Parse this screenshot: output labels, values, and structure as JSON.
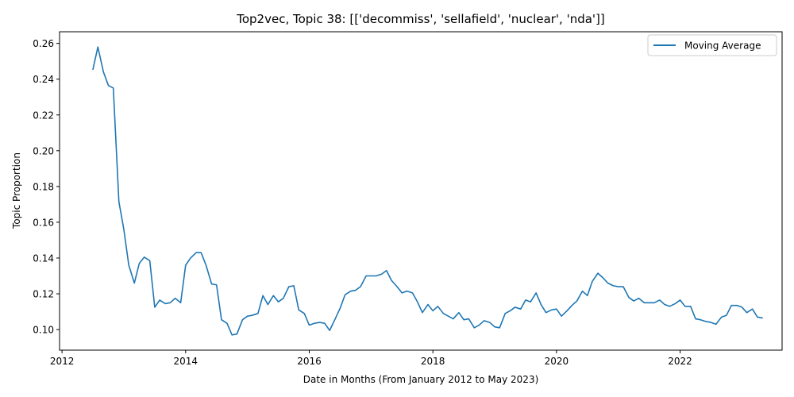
{
  "chart_data": {
    "type": "line",
    "title": "Top2vec, Topic 38: [['decommiss', 'sellafield', 'nuclear', 'nda']]",
    "xlabel": "Date in Months (From January 2012 to May 2023)",
    "ylabel": "Topic Proportion",
    "xlim": [
      2011.96,
      2023.65
    ],
    "ylim": [
      0.0885,
      0.2665
    ],
    "x_ticks": [
      2012,
      2014,
      2016,
      2018,
      2020,
      2022
    ],
    "x_tick_labels": [
      "2012",
      "2014",
      "2016",
      "2018",
      "2020",
      "2022"
    ],
    "y_ticks": [
      0.1,
      0.12,
      0.14,
      0.16,
      0.18,
      0.2,
      0.22,
      0.24,
      0.26
    ],
    "y_tick_labels": [
      "0.10",
      "0.12",
      "0.14",
      "0.16",
      "0.18",
      "0.20",
      "0.22",
      "0.24",
      "0.26"
    ],
    "grid": false,
    "legend": {
      "position": "top-right",
      "entries": [
        "Moving Average"
      ]
    },
    "series": [
      {
        "name": "Moving Average",
        "color": "#1f77b4",
        "points": [
          [
            2012.5,
            0.2455
          ],
          [
            2012.58,
            0.258
          ],
          [
            2012.67,
            0.244
          ],
          [
            2012.75,
            0.2365
          ],
          [
            2012.83,
            0.235
          ],
          [
            2012.92,
            0.1715
          ],
          [
            2013.0,
            0.156
          ],
          [
            2013.08,
            0.136
          ],
          [
            2013.17,
            0.126
          ],
          [
            2013.25,
            0.137
          ],
          [
            2013.33,
            0.1405
          ],
          [
            2013.42,
            0.1385
          ],
          [
            2013.5,
            0.1125
          ],
          [
            2013.58,
            0.1165
          ],
          [
            2013.67,
            0.1145
          ],
          [
            2013.75,
            0.115
          ],
          [
            2013.83,
            0.1175
          ],
          [
            2013.92,
            0.115
          ],
          [
            2014.0,
            0.136
          ],
          [
            2014.08,
            0.14
          ],
          [
            2014.17,
            0.143
          ],
          [
            2014.25,
            0.143
          ],
          [
            2014.33,
            0.136
          ],
          [
            2014.42,
            0.1255
          ],
          [
            2014.5,
            0.125
          ],
          [
            2014.58,
            0.1055
          ],
          [
            2014.67,
            0.1035
          ],
          [
            2014.75,
            0.097
          ],
          [
            2014.83,
            0.0975
          ],
          [
            2014.92,
            0.1055
          ],
          [
            2015.0,
            0.1075
          ],
          [
            2015.08,
            0.108
          ],
          [
            2015.17,
            0.109
          ],
          [
            2015.25,
            0.119
          ],
          [
            2015.33,
            0.114
          ],
          [
            2015.42,
            0.119
          ],
          [
            2015.5,
            0.1155
          ],
          [
            2015.58,
            0.1175
          ],
          [
            2015.67,
            0.124
          ],
          [
            2015.75,
            0.1245
          ],
          [
            2015.83,
            0.111
          ],
          [
            2015.92,
            0.109
          ],
          [
            2016.0,
            0.1025
          ],
          [
            2016.08,
            0.1035
          ],
          [
            2016.17,
            0.104
          ],
          [
            2016.25,
            0.1035
          ],
          [
            2016.33,
            0.0995
          ],
          [
            2016.42,
            0.106
          ],
          [
            2016.5,
            0.112
          ],
          [
            2016.58,
            0.1195
          ],
          [
            2016.67,
            0.1215
          ],
          [
            2016.75,
            0.122
          ],
          [
            2016.83,
            0.124
          ],
          [
            2016.92,
            0.13
          ],
          [
            2017.0,
            0.13
          ],
          [
            2017.08,
            0.13
          ],
          [
            2017.17,
            0.131
          ],
          [
            2017.25,
            0.133
          ],
          [
            2017.33,
            0.1275
          ],
          [
            2017.42,
            0.124
          ],
          [
            2017.5,
            0.1205
          ],
          [
            2017.58,
            0.1215
          ],
          [
            2017.67,
            0.1205
          ],
          [
            2017.75,
            0.1155
          ],
          [
            2017.83,
            0.1095
          ],
          [
            2017.92,
            0.114
          ],
          [
            2018.0,
            0.1105
          ],
          [
            2018.08,
            0.113
          ],
          [
            2018.17,
            0.109
          ],
          [
            2018.25,
            0.1075
          ],
          [
            2018.33,
            0.106
          ],
          [
            2018.42,
            0.1095
          ],
          [
            2018.5,
            0.1055
          ],
          [
            2018.58,
            0.106
          ],
          [
            2018.67,
            0.101
          ],
          [
            2018.75,
            0.1025
          ],
          [
            2018.83,
            0.105
          ],
          [
            2018.92,
            0.104
          ],
          [
            2019.0,
            0.1015
          ],
          [
            2019.08,
            0.101
          ],
          [
            2019.17,
            0.109
          ],
          [
            2019.25,
            0.1105
          ],
          [
            2019.33,
            0.1125
          ],
          [
            2019.42,
            0.1115
          ],
          [
            2019.5,
            0.1165
          ],
          [
            2019.58,
            0.1155
          ],
          [
            2019.67,
            0.1205
          ],
          [
            2019.75,
            0.114
          ],
          [
            2019.83,
            0.1095
          ],
          [
            2019.92,
            0.111
          ],
          [
            2020.0,
            0.1115
          ],
          [
            2020.08,
            0.1075
          ],
          [
            2020.17,
            0.1105
          ],
          [
            2020.25,
            0.1135
          ],
          [
            2020.33,
            0.116
          ],
          [
            2020.42,
            0.1215
          ],
          [
            2020.5,
            0.119
          ],
          [
            2020.58,
            0.127
          ],
          [
            2020.67,
            0.1315
          ],
          [
            2020.75,
            0.129
          ],
          [
            2020.83,
            0.126
          ],
          [
            2020.92,
            0.1245
          ],
          [
            2021.0,
            0.124
          ],
          [
            2021.08,
            0.124
          ],
          [
            2021.17,
            0.118
          ],
          [
            2021.25,
            0.116
          ],
          [
            2021.33,
            0.1175
          ],
          [
            2021.42,
            0.115
          ],
          [
            2021.5,
            0.115
          ],
          [
            2021.58,
            0.115
          ],
          [
            2021.67,
            0.1165
          ],
          [
            2021.75,
            0.114
          ],
          [
            2021.83,
            0.113
          ],
          [
            2021.92,
            0.1145
          ],
          [
            2022.0,
            0.1165
          ],
          [
            2022.08,
            0.113
          ],
          [
            2022.17,
            0.113
          ],
          [
            2022.25,
            0.106
          ],
          [
            2022.33,
            0.1055
          ],
          [
            2022.42,
            0.1045
          ],
          [
            2022.5,
            0.104
          ],
          [
            2022.58,
            0.103
          ],
          [
            2022.67,
            0.107
          ],
          [
            2022.75,
            0.108
          ],
          [
            2022.83,
            0.1135
          ],
          [
            2022.92,
            0.1135
          ],
          [
            2023.0,
            0.1125
          ],
          [
            2023.08,
            0.1095
          ],
          [
            2023.17,
            0.1115
          ],
          [
            2023.25,
            0.107
          ],
          [
            2023.33,
            0.1065
          ]
        ]
      }
    ]
  }
}
